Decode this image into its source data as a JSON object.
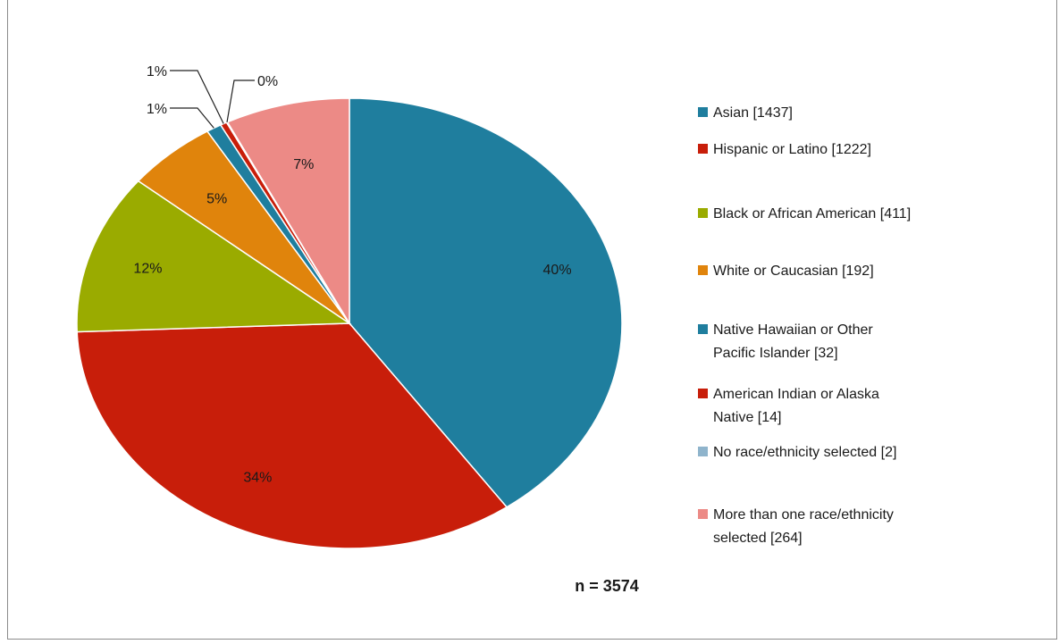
{
  "chart_data": {
    "type": "pie",
    "title": "",
    "note": "n = 3574",
    "slices": [
      {
        "label": "Asian [1437]",
        "value": 1437,
        "pct_label": "40%",
        "color": "#1f7e9e"
      },
      {
        "label": "Hispanic or Latino [1222]",
        "value": 1222,
        "pct_label": "34%",
        "color": "#c81e0a"
      },
      {
        "label": "Black or African American [411]",
        "value": 411,
        "pct_label": "12%",
        "color": "#9aab00"
      },
      {
        "label": "White or Caucasian [192]",
        "value": 192,
        "pct_label": "5%",
        "color": "#e0840c"
      },
      {
        "label": "Native Hawaiian or Other Pacific Islander [32]",
        "value": 32,
        "pct_label": "1%",
        "color": "#1f7e9e"
      },
      {
        "label": "American Indian or Alaska Native [14]",
        "value": 14,
        "pct_label": "1%",
        "color": "#c81e0a"
      },
      {
        "label": "No race/ethnicity selected [2]",
        "value": 2,
        "pct_label": "0%",
        "color": "#8fb4cc"
      },
      {
        "label": "More than one race/ethnicity selected [264]",
        "value": 264,
        "pct_label": "7%",
        "color": "#ec8a86"
      }
    ],
    "legend_position": "right"
  }
}
